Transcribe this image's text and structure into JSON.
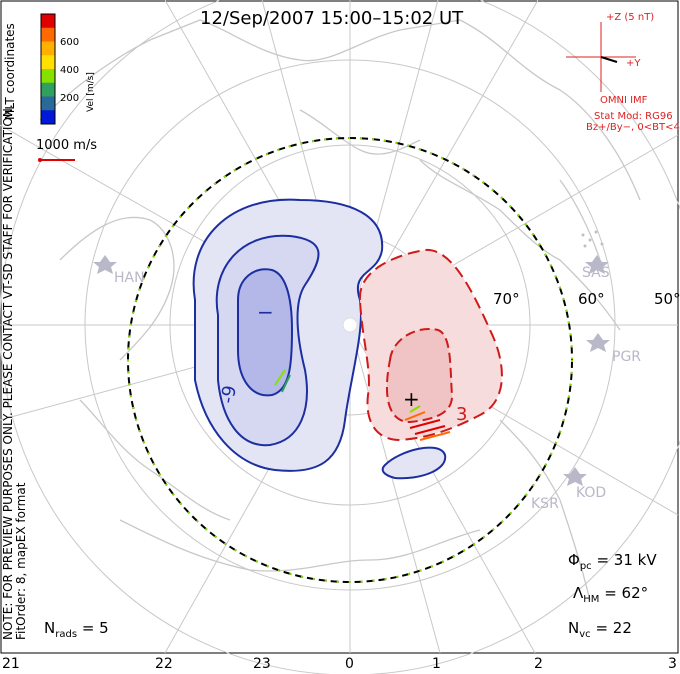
{
  "title": "12/Sep/2007 15:00–15:02 UT",
  "coordinates": "MLT coordinates",
  "note_line1": "NOTE: FOR PREVIEW PURPOSES ONLY. PLEASE CONTACT VT-SD STAFF FOR VERIFICATION.",
  "note_line2": "FitOrder: 8, mapEX format",
  "velocity_scale": {
    "unit": "Vel [m/s]",
    "ticks": [
      "600",
      "400",
      "200"
    ],
    "colors": [
      "#e00000",
      "#ff6a00",
      "#ffb000",
      "#ffe000",
      "#86e000",
      "#2fa060",
      "#2a6a9a",
      "#0018d8"
    ]
  },
  "reference_vector": "1000 m/s",
  "imf": {
    "z_label": "+Z (5 nT)",
    "y_label": "+Y",
    "source": "OMNI IMF",
    "stat_mod": "Stat Mod: RG96",
    "conditions": "Bz+/By−, 0<BT<4"
  },
  "latitude_labels": [
    "70°",
    "60°",
    "50°"
  ],
  "radars": [
    "HAN",
    "SAS",
    "PGR",
    "KOD",
    "KSR"
  ],
  "stats": {
    "phi_symbol": "Φ",
    "phi_sub": "pc",
    "phi_value": "= 31 kV",
    "lambda_symbol": "Λ",
    "lambda_sub": "HM",
    "lambda_value": "= 62°",
    "nvc_symbol": "N",
    "nvc_sub": "vc",
    "nvc_value": "= 22",
    "nrads_symbol": "N",
    "nrads_sub": "rads",
    "nrads_value": "= 5"
  },
  "mlt_axis": [
    "21",
    "22",
    "23",
    "0",
    "1",
    "2",
    "3"
  ],
  "contours": {
    "negative_sign": "−",
    "positive_sign": "+",
    "neg_label": "-9",
    "pos_label": "3",
    "colors": {
      "negative": "#1d2fa0",
      "positive": "#d01a1a",
      "boundary": "#000000"
    }
  }
}
